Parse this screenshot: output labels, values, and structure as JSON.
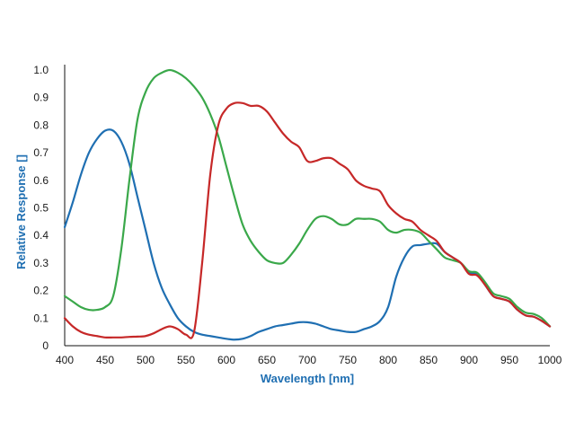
{
  "chart_data": {
    "type": "line",
    "title": "",
    "xlabel": "Wavelength [nm]",
    "ylabel": "Relative Response []",
    "xlim": [
      400,
      1000
    ],
    "ylim": [
      0,
      1.0
    ],
    "x_ticks": [
      "400",
      "450",
      "500",
      "550",
      "600",
      "650",
      "700",
      "750",
      "800",
      "850",
      "900",
      "950",
      "1000"
    ],
    "y_ticks": [
      "0",
      "0.1",
      "0.2",
      "0.3",
      "0.4",
      "0.5",
      "0.6",
      "0.7",
      "0.8",
      "0.9",
      "1.0"
    ],
    "grid": false,
    "legend": "none",
    "colors": {
      "axis_title": "#1f6fb2",
      "blue": "#1f6fb2",
      "green": "#3aa84a",
      "red": "#c62828"
    },
    "series": [
      {
        "color": "#1f6fb2",
        "x": [
          400,
          410,
          420,
          430,
          440,
          450,
          460,
          470,
          480,
          490,
          500,
          510,
          520,
          530,
          540,
          550,
          560,
          570,
          580,
          590,
          600,
          610,
          620,
          630,
          640,
          650,
          660,
          670,
          680,
          690,
          700,
          710,
          720,
          730,
          740,
          750,
          760,
          770,
          780,
          790,
          800,
          810,
          820,
          830,
          840,
          850,
          860,
          870,
          880,
          890,
          900,
          910,
          920,
          930,
          940,
          950,
          960,
          970,
          980,
          990,
          1000
        ],
        "y": [
          0.43,
          0.52,
          0.62,
          0.7,
          0.75,
          0.78,
          0.78,
          0.74,
          0.66,
          0.54,
          0.42,
          0.3,
          0.21,
          0.15,
          0.1,
          0.07,
          0.05,
          0.04,
          0.035,
          0.03,
          0.025,
          0.022,
          0.025,
          0.035,
          0.05,
          0.06,
          0.07,
          0.075,
          0.08,
          0.085,
          0.085,
          0.08,
          0.07,
          0.06,
          0.055,
          0.05,
          0.05,
          0.06,
          0.07,
          0.09,
          0.14,
          0.25,
          0.32,
          0.36,
          0.365,
          0.37,
          0.37,
          0.34,
          0.32,
          0.3,
          0.265,
          0.26,
          0.22,
          0.18,
          0.17,
          0.16,
          0.13,
          0.11,
          0.105,
          0.09,
          0.07
        ]
      },
      {
        "color": "#3aa84a",
        "x": [
          400,
          410,
          420,
          430,
          440,
          450,
          460,
          470,
          480,
          490,
          500,
          510,
          520,
          530,
          540,
          550,
          560,
          570,
          580,
          590,
          600,
          610,
          620,
          630,
          640,
          650,
          660,
          670,
          680,
          690,
          700,
          710,
          720,
          730,
          740,
          750,
          760,
          770,
          780,
          790,
          800,
          810,
          820,
          830,
          840,
          850,
          860,
          870,
          880,
          890,
          900,
          910,
          920,
          930,
          940,
          950,
          960,
          970,
          980,
          990,
          1000
        ],
        "y": [
          0.18,
          0.16,
          0.14,
          0.13,
          0.13,
          0.14,
          0.18,
          0.35,
          0.6,
          0.82,
          0.92,
          0.97,
          0.99,
          1.0,
          0.99,
          0.97,
          0.94,
          0.9,
          0.84,
          0.76,
          0.65,
          0.54,
          0.44,
          0.38,
          0.34,
          0.31,
          0.3,
          0.3,
          0.33,
          0.37,
          0.42,
          0.46,
          0.47,
          0.46,
          0.44,
          0.44,
          0.46,
          0.46,
          0.46,
          0.45,
          0.42,
          0.41,
          0.42,
          0.42,
          0.41,
          0.38,
          0.35,
          0.32,
          0.31,
          0.3,
          0.27,
          0.265,
          0.23,
          0.19,
          0.18,
          0.17,
          0.14,
          0.12,
          0.115,
          0.1,
          0.07
        ]
      },
      {
        "color": "#c62828",
        "x": [
          400,
          410,
          420,
          430,
          440,
          450,
          460,
          470,
          480,
          490,
          500,
          510,
          520,
          530,
          540,
          550,
          560,
          570,
          580,
          590,
          600,
          610,
          620,
          630,
          640,
          650,
          660,
          670,
          680,
          690,
          700,
          710,
          720,
          730,
          740,
          750,
          760,
          770,
          780,
          790,
          800,
          810,
          820,
          830,
          840,
          850,
          860,
          870,
          880,
          890,
          900,
          910,
          920,
          930,
          940,
          950,
          960,
          970,
          980,
          990,
          1000
        ],
        "y": [
          0.1,
          0.07,
          0.05,
          0.04,
          0.035,
          0.03,
          0.03,
          0.03,
          0.032,
          0.033,
          0.035,
          0.045,
          0.06,
          0.07,
          0.06,
          0.04,
          0.05,
          0.3,
          0.62,
          0.8,
          0.86,
          0.88,
          0.88,
          0.87,
          0.87,
          0.85,
          0.81,
          0.77,
          0.74,
          0.72,
          0.67,
          0.67,
          0.68,
          0.68,
          0.66,
          0.64,
          0.6,
          0.58,
          0.57,
          0.56,
          0.51,
          0.48,
          0.46,
          0.45,
          0.42,
          0.4,
          0.38,
          0.34,
          0.32,
          0.3,
          0.26,
          0.255,
          0.22,
          0.18,
          0.17,
          0.16,
          0.13,
          0.11,
          0.105,
          0.09,
          0.07
        ]
      }
    ]
  }
}
